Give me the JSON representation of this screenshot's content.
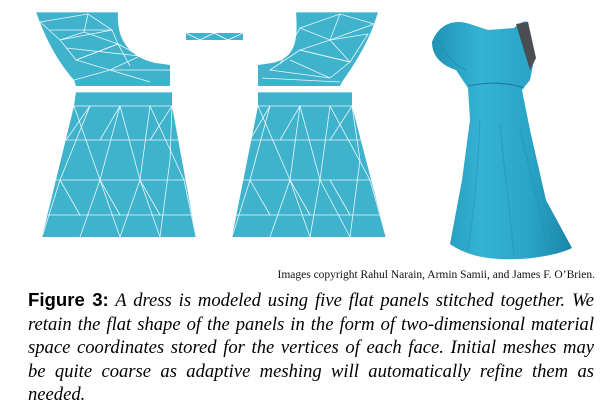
{
  "figure": {
    "panel_color": "#3fb2cc",
    "mesh_color": "#ffffff",
    "dress_color": "#2aa7c8",
    "copyright": "Images copyright Rahul Narain, Armin Samii, and James F. O’Brien.",
    "panels": [
      "front-bodice",
      "strap",
      "back-bodice",
      "front-skirt",
      "back-skirt"
    ]
  },
  "caption": {
    "label": "Figure 3:",
    "text": "A dress is modeled using five flat panels stitched together. We retain the flat shape of the panels in the form of two-dimensional material space coordinates stored for the vertices of each face. Initial meshes may be quite coarse as adaptive meshing will automatically refine them as needed."
  }
}
